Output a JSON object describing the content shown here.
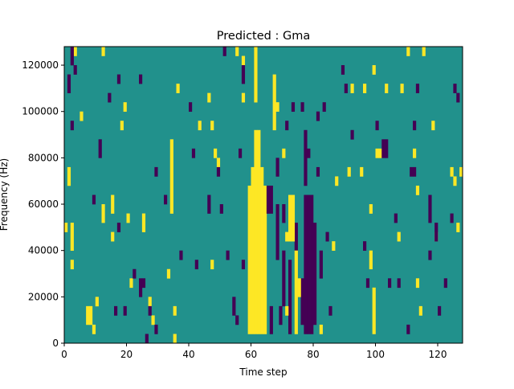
{
  "chart_data": {
    "type": "heatmap",
    "title": "Predicted : Gma",
    "xlabel": "Time step",
    "ylabel": "Frequency (Hz)",
    "xlim": [
      0,
      128
    ],
    "ylim": [
      0,
      128000
    ],
    "n_time_steps": 128,
    "n_freq_bins": 32,
    "bin_hz": 4000,
    "xticks": [
      "0",
      "20",
      "40",
      "60",
      "80",
      "100",
      "120"
    ],
    "xtick_values": [
      0,
      20,
      40,
      60,
      80,
      100,
      120
    ],
    "yticks": [
      "0",
      "20000",
      "40000",
      "60000",
      "80000",
      "100000",
      "120000"
    ],
    "ytick_values": [
      0,
      20000,
      40000,
      60000,
      80000,
      100000,
      120000
    ],
    "colormap": {
      "background_value": 0.5,
      "0": "#440154",
      "0.5": "#21918c",
      "1": "#fde725"
    },
    "cells_note": "each mark = [time_step, freq_bin_start, freq_bin_end, value]",
    "marks": [
      [
        59,
        1,
        16,
        1
      ],
      [
        60,
        1,
        16,
        1
      ],
      [
        61,
        1,
        19,
        1
      ],
      [
        62,
        1,
        19,
        1
      ],
      [
        63,
        1,
        16,
        1
      ],
      [
        64,
        1,
        16,
        1
      ],
      [
        60,
        17,
        18,
        1
      ],
      [
        63,
        17,
        18,
        1
      ],
      [
        61,
        20,
        22,
        1
      ],
      [
        62,
        20,
        22,
        1
      ],
      [
        61,
        26,
        31,
        1
      ],
      [
        77,
        1,
        15,
        0
      ],
      [
        78,
        1,
        15,
        0
      ],
      [
        79,
        1,
        15,
        0
      ],
      [
        80,
        2,
        12,
        0
      ],
      [
        76,
        2,
        6,
        0
      ],
      [
        72,
        1,
        8,
        0
      ],
      [
        70,
        4,
        9,
        0
      ],
      [
        68,
        9,
        14,
        0
      ],
      [
        74,
        10,
        12,
        0
      ],
      [
        66,
        1,
        3,
        0
      ],
      [
        69,
        2,
        3,
        0
      ],
      [
        82,
        7,
        9,
        0
      ],
      [
        84,
        11,
        11,
        0
      ],
      [
        1,
        17,
        18,
        1
      ],
      [
        2,
        10,
        12,
        1
      ],
      [
        0,
        12,
        12,
        1
      ],
      [
        2,
        8,
        8,
        1
      ],
      [
        5,
        24,
        24,
        1
      ],
      [
        7,
        2,
        3,
        1
      ],
      [
        8,
        2,
        3,
        1
      ],
      [
        9,
        1,
        1,
        1
      ],
      [
        10,
        4,
        4,
        1
      ],
      [
        12,
        31,
        31,
        1
      ],
      [
        12,
        13,
        14,
        1
      ],
      [
        15,
        14,
        15,
        1
      ],
      [
        15,
        11,
        11,
        1
      ],
      [
        18,
        23,
        23,
        1
      ],
      [
        19,
        25,
        25,
        1
      ],
      [
        20,
        13,
        13,
        1
      ],
      [
        21,
        6,
        6,
        1
      ],
      [
        25,
        12,
        13,
        1
      ],
      [
        27,
        4,
        4,
        1
      ],
      [
        33,
        7,
        7,
        1
      ],
      [
        34,
        14,
        21,
        1
      ],
      [
        35,
        3,
        3,
        1
      ],
      [
        35,
        0,
        0,
        1
      ],
      [
        36,
        27,
        27,
        1
      ],
      [
        43,
        23,
        23,
        1
      ],
      [
        46,
        26,
        26,
        1
      ],
      [
        47,
        8,
        8,
        1
      ],
      [
        47,
        23,
        23,
        1
      ],
      [
        48,
        20,
        20,
        1
      ],
      [
        49,
        19,
        19,
        1
      ],
      [
        57,
        26,
        26,
        1
      ],
      [
        67,
        23,
        28,
        1
      ],
      [
        68,
        25,
        25,
        1
      ],
      [
        70,
        20,
        20,
        1
      ],
      [
        71,
        11,
        11,
        1
      ],
      [
        71,
        3,
        3,
        1
      ],
      [
        72,
        11,
        15,
        1
      ],
      [
        73,
        11,
        15,
        1
      ],
      [
        74,
        1,
        9,
        1
      ],
      [
        75,
        5,
        6,
        1
      ],
      [
        82,
        1,
        1,
        1
      ],
      [
        86,
        10,
        10,
        1
      ],
      [
        87,
        17,
        17,
        1
      ],
      [
        91,
        18,
        18,
        1
      ],
      [
        92,
        27,
        27,
        1
      ],
      [
        95,
        18,
        18,
        1
      ],
      [
        96,
        27,
        27,
        1
      ],
      [
        98,
        8,
        9,
        1
      ],
      [
        99,
        29,
        29,
        1
      ],
      [
        100,
        20,
        20,
        1
      ],
      [
        101,
        20,
        20,
        1
      ],
      [
        98,
        14,
        14,
        1
      ],
      [
        99,
        1,
        5,
        1
      ],
      [
        103,
        27,
        27,
        1
      ],
      [
        107,
        11,
        11,
        1
      ],
      [
        108,
        27,
        27,
        1
      ],
      [
        112,
        20,
        20,
        1
      ],
      [
        110,
        31,
        31,
        1
      ],
      [
        113,
        16,
        16,
        1
      ],
      [
        113,
        6,
        6,
        1
      ],
      [
        114,
        3,
        3,
        1
      ],
      [
        115,
        31,
        31,
        1
      ],
      [
        118,
        23,
        23,
        1
      ],
      [
        119,
        11,
        11,
        1
      ],
      [
        124,
        18,
        18,
        1
      ],
      [
        125,
        17,
        17,
        1
      ],
      [
        126,
        12,
        12,
        1
      ],
      [
        127,
        18,
        18,
        1
      ],
      [
        3,
        31,
        31,
        1
      ],
      [
        28,
        2,
        2,
        1
      ],
      [
        55,
        31,
        31,
        1
      ],
      [
        57,
        30,
        30,
        1
      ],
      [
        2,
        30,
        31,
        0
      ],
      [
        3,
        29,
        29,
        0
      ],
      [
        2,
        23,
        23,
        0
      ],
      [
        9,
        15,
        15,
        0
      ],
      [
        11,
        20,
        21,
        0
      ],
      [
        14,
        26,
        26,
        0
      ],
      [
        16,
        3,
        3,
        0
      ],
      [
        17,
        28,
        28,
        0
      ],
      [
        17,
        12,
        12,
        0
      ],
      [
        19,
        3,
        3,
        0
      ],
      [
        22,
        7,
        7,
        0
      ],
      [
        24,
        28,
        28,
        0
      ],
      [
        24,
        5,
        6,
        0
      ],
      [
        25,
        6,
        6,
        0
      ],
      [
        27,
        3,
        3,
        0
      ],
      [
        29,
        18,
        18,
        0
      ],
      [
        32,
        15,
        15,
        0
      ],
      [
        37,
        9,
        9,
        0
      ],
      [
        40,
        25,
        25,
        0
      ],
      [
        41,
        20,
        20,
        0
      ],
      [
        42,
        8,
        8,
        0
      ],
      [
        46,
        14,
        15,
        0
      ],
      [
        49,
        18,
        18,
        0
      ],
      [
        50,
        14,
        14,
        0
      ],
      [
        51,
        31,
        31,
        0
      ],
      [
        52,
        9,
        9,
        0
      ],
      [
        54,
        3,
        4,
        0
      ],
      [
        55,
        2,
        2,
        0
      ],
      [
        56,
        20,
        20,
        0
      ],
      [
        57,
        8,
        8,
        0
      ],
      [
        57,
        28,
        29,
        0
      ],
      [
        65,
        14,
        16,
        0
      ],
      [
        66,
        14,
        16,
        0
      ],
      [
        68,
        18,
        19,
        0
      ],
      [
        70,
        13,
        14,
        0
      ],
      [
        71,
        23,
        23,
        0
      ],
      [
        73,
        25,
        25,
        0
      ],
      [
        76,
        25,
        25,
        0
      ],
      [
        77,
        17,
        22,
        0
      ],
      [
        78,
        20,
        20,
        0
      ],
      [
        81,
        24,
        24,
        0
      ],
      [
        81,
        18,
        18,
        0
      ],
      [
        83,
        25,
        25,
        0
      ],
      [
        85,
        3,
        3,
        0
      ],
      [
        89,
        29,
        29,
        0
      ],
      [
        90,
        27,
        27,
        0
      ],
      [
        92,
        22,
        22,
        0
      ],
      [
        96,
        10,
        10,
        0
      ],
      [
        97,
        6,
        6,
        0
      ],
      [
        100,
        23,
        23,
        0
      ],
      [
        102,
        20,
        21,
        0
      ],
      [
        103,
        20,
        21,
        0
      ],
      [
        104,
        6,
        6,
        0
      ],
      [
        106,
        13,
        13,
        0
      ],
      [
        107,
        6,
        6,
        0
      ],
      [
        110,
        1,
        1,
        0
      ],
      [
        111,
        18,
        18,
        0
      ],
      [
        112,
        18,
        18,
        0
      ],
      [
        112,
        23,
        23,
        0
      ],
      [
        113,
        27,
        27,
        0
      ],
      [
        117,
        9,
        9,
        0
      ],
      [
        117,
        13,
        15,
        0
      ],
      [
        119,
        11,
        12,
        0
      ],
      [
        120,
        3,
        3,
        0
      ],
      [
        122,
        6,
        6,
        0
      ],
      [
        124,
        13,
        13,
        0
      ],
      [
        125,
        27,
        27,
        0
      ],
      [
        126,
        26,
        26,
        0
      ],
      [
        1,
        27,
        28,
        0
      ],
      [
        26,
        0,
        0,
        0
      ],
      [
        29,
        1,
        1,
        0
      ]
    ]
  }
}
